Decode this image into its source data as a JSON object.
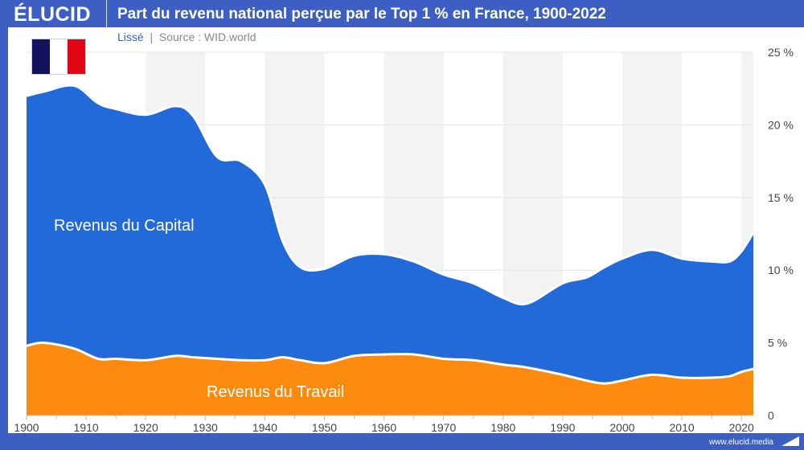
{
  "header": {
    "logo": "ÉLUCID",
    "title": "Part du revenu national perçue par le Top 1 % en France, 1900-2022"
  },
  "subtitle": {
    "smoothing": "Lissé",
    "separator": "|",
    "source": "Source : WID.world"
  },
  "flag": {
    "colors": [
      "#12125e",
      "#ffffff",
      "#e20613"
    ]
  },
  "footer": {
    "url": "www.elucid.media"
  },
  "chart_data": {
    "type": "area",
    "stacked": true,
    "title": "Part du revenu national perçue par le Top 1 % en France, 1900-2022",
    "xlim": [
      1900,
      2022
    ],
    "ylim": [
      0,
      25
    ],
    "x_ticks": [
      "1900",
      "1910",
      "1920",
      "1930",
      "1940",
      "1950",
      "1960",
      "1970",
      "1980",
      "1990",
      "2000",
      "2010",
      "2020"
    ],
    "y_ticks": [
      "0",
      "5 %",
      "10 %",
      "15 %",
      "20 %",
      "25 %"
    ],
    "grid": "horizontal lines + alternating vertical decade bands",
    "x": [
      1900,
      1903,
      1908,
      1912,
      1915,
      1920,
      1925,
      1928,
      1932,
      1936,
      1940,
      1943,
      1946,
      1950,
      1955,
      1960,
      1965,
      1970,
      1975,
      1980,
      1984,
      1990,
      1994,
      1997,
      2000,
      2005,
      2010,
      2015,
      2018,
      2020,
      2022
    ],
    "series": [
      {
        "name": "Revenus du Travail",
        "color": "#fb8a0f",
        "values": [
          4.8,
          5.0,
          4.6,
          3.9,
          3.9,
          3.8,
          4.1,
          4.0,
          3.9,
          3.8,
          3.8,
          4.0,
          3.8,
          3.6,
          4.1,
          4.2,
          4.2,
          3.9,
          3.8,
          3.5,
          3.3,
          2.8,
          2.4,
          2.2,
          2.4,
          2.8,
          2.6,
          2.6,
          2.7,
          3.0,
          3.2
        ]
      },
      {
        "name": "Revenus du Capital",
        "color": "#226ad9",
        "values": [
          17.2,
          17.3,
          18.1,
          17.6,
          17.2,
          16.9,
          17.2,
          16.6,
          13.9,
          13.7,
          12.1,
          8.0,
          6.4,
          6.5,
          6.9,
          6.9,
          6.4,
          5.8,
          5.3,
          4.6,
          4.4,
          6.3,
          7.1,
          8.0,
          8.4,
          8.6,
          8.2,
          8.0,
          7.9,
          8.3,
          9.4
        ]
      }
    ]
  }
}
